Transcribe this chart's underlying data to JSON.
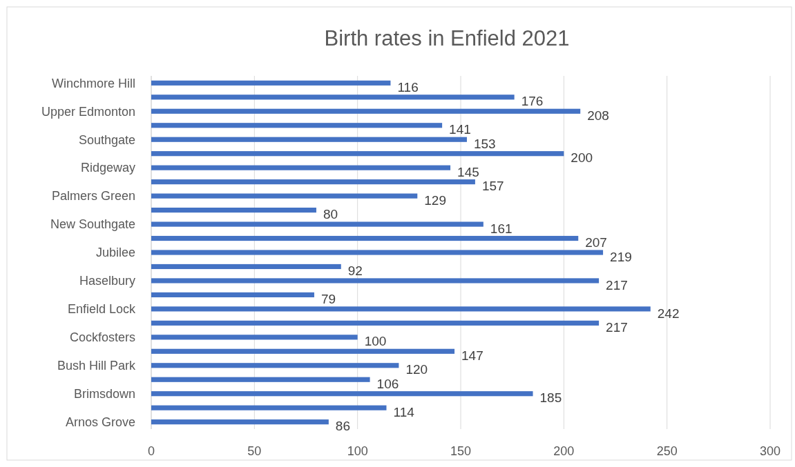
{
  "chart_data": {
    "type": "bar",
    "orientation": "horizontal",
    "title": "Birth rates in Enfield 2021",
    "categories": [
      "Winchmore Hill",
      null,
      "Upper Edmonton",
      null,
      "Southgate",
      null,
      "Ridgeway",
      null,
      "Palmers Green",
      null,
      "New Southgate",
      null,
      "Jubilee",
      null,
      "Haselbury",
      null,
      "Enfield Lock",
      null,
      "Cockfosters",
      null,
      "Bush Hill Park",
      null,
      "Brimsdown",
      null,
      "Arnos Grove"
    ],
    "values": [
      116,
      176,
      208,
      141,
      153,
      200,
      145,
      157,
      129,
      80,
      161,
      207,
      219,
      92,
      217,
      79,
      242,
      217,
      100,
      147,
      120,
      106,
      185,
      114,
      86
    ],
    "color": "#4472c4",
    "xlim": [
      0,
      300
    ],
    "xticks": [
      0,
      50,
      100,
      150,
      200,
      250,
      300
    ],
    "grid": "x",
    "data_labels": true
  }
}
